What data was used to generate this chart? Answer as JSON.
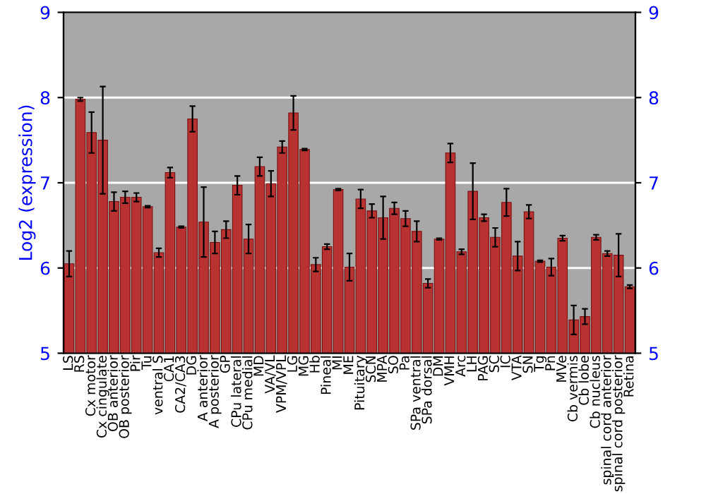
{
  "chart_data": {
    "type": "bar",
    "ylabel": "Log2 (expression)",
    "categories": [
      "LS",
      "RS",
      "Cx motor",
      "Cx cingulate",
      "OB anterior",
      "OB posterior",
      "Pir",
      "Tu",
      "ventral S",
      "CA1",
      "CA2/CA3",
      "DG",
      "A anterior",
      "A posterior",
      "GP",
      "CPu lateral",
      "CPu medial",
      "MD",
      "VA/VL",
      "VPM/VPL",
      "LG",
      "MG",
      "Hb",
      "Pineal",
      "MI",
      "ME",
      "Pituitary",
      "SCN",
      "MPA",
      "SO",
      "Pa",
      "SPa ventral",
      "SPa dorsal",
      "DM",
      "VMH",
      "Arc",
      "LH",
      "PAG",
      "SC",
      "IC",
      "VTA",
      "SN",
      "Tg",
      "Pn",
      "MVe",
      "Cb vermis",
      "Cb lobe",
      "Cb nucleus",
      "spinal cord anterior",
      "spinal cord posterior",
      "Retina"
    ],
    "values": [
      6.05,
      7.98,
      7.59,
      7.5,
      6.78,
      6.83,
      6.83,
      6.72,
      6.18,
      7.12,
      6.48,
      7.75,
      6.54,
      6.3,
      6.45,
      6.97,
      6.34,
      7.19,
      6.99,
      7.42,
      7.82,
      7.39,
      6.04,
      6.25,
      6.92,
      6.01,
      6.81,
      6.67,
      6.59,
      6.7,
      6.58,
      6.43,
      5.82,
      6.34,
      7.35,
      6.19,
      6.9,
      6.59,
      6.36,
      6.77,
      6.14,
      6.66,
      6.08,
      6.01,
      6.35,
      5.39,
      5.43,
      6.36,
      6.17,
      6.15,
      5.78
    ],
    "errors": [
      0.15,
      0.02,
      0.24,
      0.63,
      0.11,
      0.07,
      0.05,
      0.01,
      0.05,
      0.06,
      0.01,
      0.15,
      0.41,
      0.13,
      0.1,
      0.11,
      0.17,
      0.11,
      0.15,
      0.07,
      0.2,
      0.01,
      0.08,
      0.03,
      0.01,
      0.16,
      0.11,
      0.08,
      0.25,
      0.07,
      0.09,
      0.12,
      0.05,
      0.01,
      0.11,
      0.03,
      0.33,
      0.04,
      0.11,
      0.16,
      0.17,
      0.08,
      0.01,
      0.1,
      0.03,
      0.17,
      0.09,
      0.03,
      0.03,
      0.25,
      0.02
    ],
    "color": "#b83232",
    "ylim": [
      5,
      9
    ],
    "yticks": [
      5,
      6,
      7,
      8,
      9
    ],
    "y2lim": [
      5,
      9
    ],
    "y2ticks": [
      5,
      6,
      7,
      8,
      9
    ],
    "grid": "y",
    "legend": false
  }
}
